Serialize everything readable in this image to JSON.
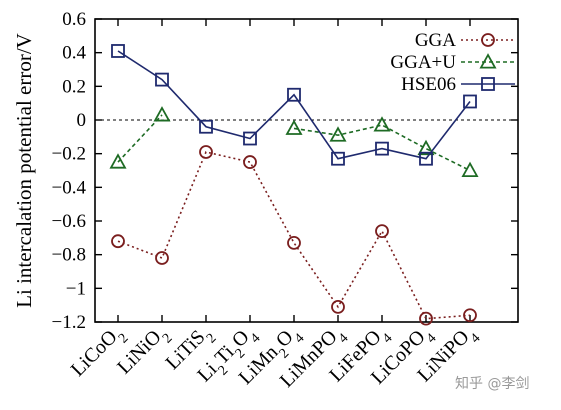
{
  "chart_data": {
    "type": "line",
    "ylabel": "Li intercalation potential error/V",
    "xlabel": "",
    "ylim": [
      -1.2,
      0.6
    ],
    "yticks": [
      "0.6",
      "0.4",
      "0.2",
      "0",
      "-0.2",
      "-0.4",
      "-0.6",
      "-0.8",
      "-1",
      "-1.2"
    ],
    "yticks_values": [
      0.6,
      0.4,
      0.2,
      0,
      -0.2,
      -0.4,
      -0.6,
      -0.8,
      -1.0,
      -1.2
    ],
    "categories": [
      [
        {
          "t": "LiCoO"
        },
        {
          "t": "2",
          "sub": true
        }
      ],
      [
        {
          "t": "LiNiO"
        },
        {
          "t": "2",
          "sub": true
        }
      ],
      [
        {
          "t": "LiTiS"
        },
        {
          "t": "2",
          "sub": true
        }
      ],
      [
        {
          "t": "Li"
        },
        {
          "t": "2",
          "sub": true
        },
        {
          "t": "Ti"
        },
        {
          "t": "2",
          "sub": true
        },
        {
          "t": "O"
        },
        {
          "t": "4",
          "sub": true
        }
      ],
      [
        {
          "t": "LiMn"
        },
        {
          "t": "2",
          "sub": true
        },
        {
          "t": "O"
        },
        {
          "t": "4",
          "sub": true
        }
      ],
      [
        {
          "t": "LiMnPO"
        },
        {
          "t": "4",
          "sub": true
        }
      ],
      [
        {
          "t": "LiFePO"
        },
        {
          "t": "4",
          "sub": true
        }
      ],
      [
        {
          "t": "LiCoPO"
        },
        {
          "t": "4",
          "sub": true
        }
      ],
      [
        {
          "t": "LiNiPO"
        },
        {
          "t": "4",
          "sub": true
        }
      ]
    ],
    "reference_line": 0,
    "grid": false,
    "legend_position": "top-right",
    "series": [
      {
        "name": "GGA",
        "color": "#7a1e1e",
        "marker": "circle",
        "line": "dotted",
        "values": [
          -0.72,
          -0.82,
          -0.19,
          -0.25,
          -0.73,
          -1.11,
          -0.66,
          -1.18,
          -1.16
        ]
      },
      {
        "name": "GGA+U",
        "color": "#1e6b24",
        "marker": "triangle",
        "line": "dashed",
        "values": [
          -0.25,
          0.03,
          null,
          null,
          -0.05,
          -0.09,
          -0.03,
          -0.17,
          -0.3
        ]
      },
      {
        "name": "HSE06",
        "color": "#1f2a6e",
        "marker": "square",
        "line": "solid",
        "values": [
          0.41,
          0.24,
          -0.04,
          -0.11,
          0.15,
          -0.23,
          -0.17,
          -0.23,
          0.11
        ]
      }
    ]
  },
  "watermark": "知乎 @李剑"
}
